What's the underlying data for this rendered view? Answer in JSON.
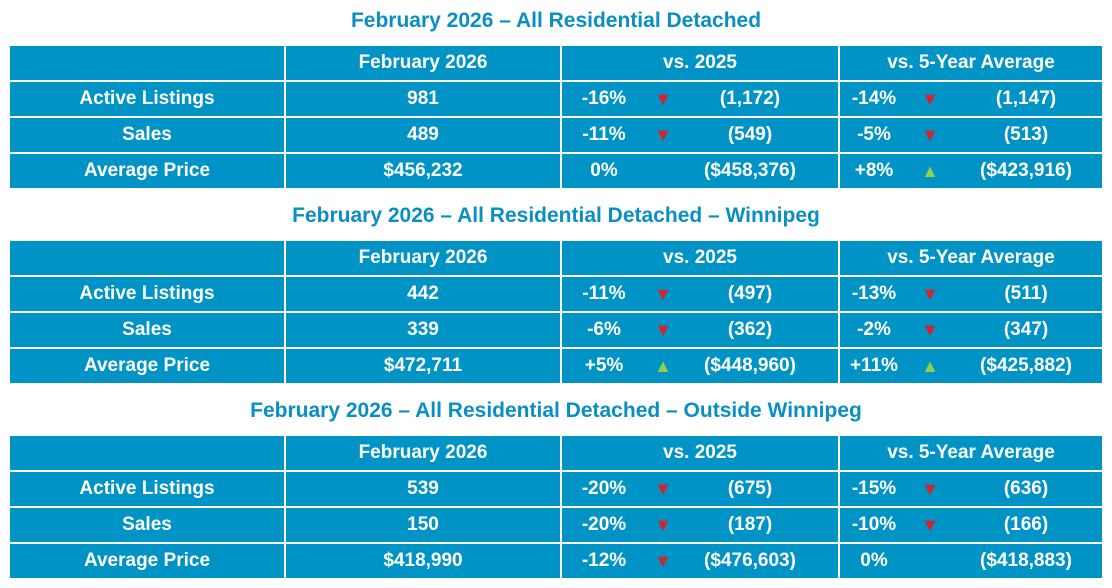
{
  "colors": {
    "cell": "#0093c6",
    "title": "#0a8fc4",
    "down": "#d3232b",
    "up": "#8fd14f"
  },
  "sections": [
    {
      "title": "February 2026 – All Residential Detached",
      "headers": [
        "",
        "February 2026",
        "vs. 2025",
        "vs. 5-Year Average"
      ],
      "rows": [
        {
          "label": "Active Listings",
          "value": "981",
          "vs_pct": "-16%",
          "vs_dir": "down",
          "vs_val": "(1,172)",
          "avg_pct": "-14%",
          "avg_dir": "down",
          "avg_val": "(1,147)"
        },
        {
          "label": "Sales",
          "value": "489",
          "vs_pct": "-11%",
          "vs_dir": "down",
          "vs_val": "(549)",
          "avg_pct": "-5%",
          "avg_dir": "down",
          "avg_val": "(513)"
        },
        {
          "label": "Average Price",
          "value": "$456,232",
          "vs_pct": "0%",
          "vs_dir": "none",
          "vs_val": "($458,376)",
          "avg_pct": "+8%",
          "avg_dir": "up",
          "avg_val": "($423,916)"
        }
      ]
    },
    {
      "title": "February 2026 – All Residential Detached – Winnipeg",
      "headers": [
        "",
        "February 2026",
        "vs. 2025",
        "vs. 5-Year Average"
      ],
      "rows": [
        {
          "label": "Active Listings",
          "value": "442",
          "vs_pct": "-11%",
          "vs_dir": "down",
          "vs_val": "(497)",
          "avg_pct": "-13%",
          "avg_dir": "down",
          "avg_val": "(511)"
        },
        {
          "label": "Sales",
          "value": "339",
          "vs_pct": "-6%",
          "vs_dir": "down",
          "vs_val": "(362)",
          "avg_pct": "-2%",
          "avg_dir": "down",
          "avg_val": "(347)"
        },
        {
          "label": "Average Price",
          "value": "$472,711",
          "vs_pct": "+5%",
          "vs_dir": "up",
          "vs_val": "($448,960)",
          "avg_pct": "+11%",
          "avg_dir": "up",
          "avg_val": "($425,882)"
        }
      ]
    },
    {
      "title": "February 2026 – All Residential Detached – Outside Winnipeg",
      "headers": [
        "",
        "February 2026",
        "vs. 2025",
        "vs. 5-Year Average"
      ],
      "rows": [
        {
          "label": "Active Listings",
          "value": "539",
          "vs_pct": "-20%",
          "vs_dir": "down",
          "vs_val": "(675)",
          "avg_pct": "-15%",
          "avg_dir": "down",
          "avg_val": "(636)"
        },
        {
          "label": "Sales",
          "value": "150",
          "vs_pct": "-20%",
          "vs_dir": "down",
          "vs_val": "(187)",
          "avg_pct": "-10%",
          "avg_dir": "down",
          "avg_val": "(166)"
        },
        {
          "label": "Average Price",
          "value": "$418,990",
          "vs_pct": "-12%",
          "vs_dir": "down",
          "vs_val": "($476,603)",
          "avg_pct": "0%",
          "avg_dir": "none",
          "avg_val": "($418,883)"
        }
      ]
    }
  ]
}
